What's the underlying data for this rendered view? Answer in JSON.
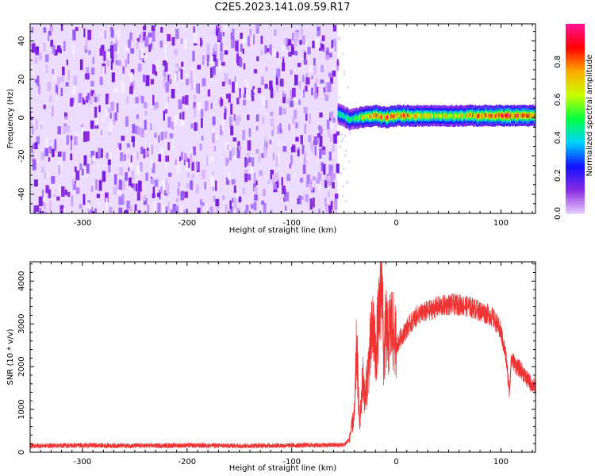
{
  "title": "C2E5.2023.141.09.59.R17",
  "chart_data": [
    {
      "type": "heatmap",
      "xlabel": "Height of straight line (km)",
      "ylabel": "Frequency (Hz)",
      "xlim": [
        -350,
        133
      ],
      "ylim": [
        -50,
        49
      ],
      "xticks": [
        -300,
        -200,
        -100,
        0,
        100
      ],
      "yticks": [
        -40,
        -20,
        0,
        20,
        40
      ],
      "noise_region_x": [
        -350,
        -56
      ],
      "signal_band": {
        "x": [
          -56,
          -45,
          -35,
          -20,
          -10,
          0,
          20,
          40,
          60,
          80,
          100,
          133
        ],
        "center_freq_hz": [
          2,
          -1,
          0,
          1,
          0,
          1,
          1,
          1,
          1,
          1,
          1,
          1
        ],
        "peak_amplitude": [
          0.4,
          0.5,
          0.6,
          0.8,
          0.85,
          0.8,
          0.7,
          0.6,
          0.65,
          0.8,
          0.9,
          0.75
        ]
      },
      "colorbar": {
        "label": "Normalized spectral amplitude",
        "range": [
          0,
          1
        ],
        "ticks": [
          0.0,
          0.2,
          0.4,
          0.6,
          0.8
        ],
        "colors": [
          "#e8ccff",
          "#8a2be2",
          "#1010ff",
          "#00d4ff",
          "#00ff40",
          "#c8ff00",
          "#ffaa00",
          "#ff0000",
          "#ff1493"
        ]
      },
      "grid": false
    },
    {
      "type": "line",
      "xlabel": "Height of straight line (km)",
      "ylabel": "SNR (10 * v/v)",
      "xlim": [
        -350,
        133
      ],
      "ylim": [
        0,
        4450
      ],
      "xticks": [
        -300,
        -200,
        -100,
        0,
        100
      ],
      "yticks": [
        0,
        1000,
        2000,
        3000,
        4000
      ],
      "series": [
        {
          "color": "#ee3333",
          "x": [
            -350,
            -300,
            -250,
            -200,
            -150,
            -100,
            -50,
            -45,
            -40,
            -38,
            -35,
            -32,
            -30,
            -25,
            -22,
            -20,
            -18,
            -16,
            -14,
            -12,
            -10,
            -8,
            -5,
            0,
            10,
            20,
            30,
            40,
            50,
            60,
            70,
            80,
            90,
            95,
            100,
            105,
            108,
            110,
            115,
            120,
            125,
            133
          ],
          "y": [
            150,
            160,
            150,
            160,
            150,
            160,
            170,
            300,
            900,
            2500,
            600,
            1800,
            1200,
            2400,
            3000,
            2200,
            2800,
            3200,
            4450,
            2000,
            3000,
            2600,
            3000,
            2500,
            2900,
            3200,
            3300,
            3400,
            3450,
            3450,
            3400,
            3300,
            3200,
            3050,
            2800,
            2200,
            1400,
            2200,
            2000,
            1900,
            1700,
            1500
          ]
        }
      ],
      "grid": false
    }
  ]
}
